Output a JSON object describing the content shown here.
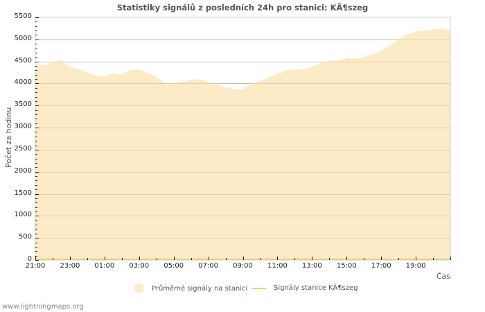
{
  "chart": {
    "title": "Statistiky signálů z posledních 24h pro stanici: KÃ¶szeg",
    "ylabel": "Počet za hodinu",
    "xlabel": "Čas",
    "yticks": [
      "0",
      "500",
      "1000",
      "1500",
      "2000",
      "2500",
      "3000",
      "3500",
      "4000",
      "4500",
      "5000",
      "5500"
    ],
    "xticks": [
      "21:00",
      "23:00",
      "01:00",
      "03:00",
      "05:00",
      "07:00",
      "09:00",
      "11:00",
      "13:00",
      "15:00",
      "17:00",
      "19:00"
    ],
    "legend": {
      "area_label": "Průměmé signály na stanici",
      "line_label": "Signály stanice KÃ¶szeg"
    },
    "colors": {
      "area_fill": "#fdebc8",
      "station_line": "#f5cc60",
      "grid": "#cccccc",
      "axis": "#cccccc"
    }
  },
  "footer": {
    "site": "www.lightningmaps.org"
  },
  "chart_data": {
    "type": "area",
    "title": "Statistiky signálů z posledních 24h pro stanici: KÃ¶szeg",
    "xlabel": "Čas",
    "ylabel": "Počet za hodinu",
    "ylim": [
      0,
      5500
    ],
    "grid": true,
    "legend_position": "bottom",
    "x": [
      "21:00",
      "21:30",
      "22:00",
      "22:30",
      "23:00",
      "23:30",
      "00:00",
      "00:30",
      "01:00",
      "01:30",
      "02:00",
      "02:30",
      "03:00",
      "03:30",
      "04:00",
      "04:30",
      "05:00",
      "05:30",
      "06:00",
      "06:30",
      "07:00",
      "07:30",
      "08:00",
      "08:30",
      "09:00",
      "09:30",
      "10:00",
      "10:30",
      "11:00",
      "11:30",
      "12:00",
      "12:30",
      "13:00",
      "13:30",
      "14:00",
      "14:30",
      "15:00",
      "15:30",
      "16:00",
      "16:30",
      "17:00",
      "17:30",
      "18:00",
      "18:30",
      "19:00",
      "19:30",
      "20:00",
      "20:30",
      "21:00"
    ],
    "series": [
      {
        "name": "Průměmé signály na stanici",
        "type": "area",
        "values": [
          4415,
          4415,
          4480,
          4530,
          4370,
          4320,
          4260,
          4165,
          4165,
          4230,
          4195,
          4305,
          4320,
          4245,
          4150,
          4005,
          4005,
          4040,
          4085,
          4100,
          4040,
          3975,
          3915,
          3865,
          3880,
          3990,
          4055,
          4135,
          4225,
          4290,
          4320,
          4320,
          4385,
          4460,
          4510,
          4525,
          4575,
          4560,
          4605,
          4665,
          4745,
          4870,
          4995,
          5120,
          5185,
          5200,
          5230,
          5250,
          5200
        ]
      },
      {
        "name": "Signály stanice KÃ¶szeg",
        "type": "line",
        "values": [
          0,
          0,
          0,
          0,
          0,
          0,
          0,
          0,
          0,
          0,
          0,
          0,
          0,
          0,
          0,
          0,
          0,
          0,
          0,
          0,
          0,
          0,
          0,
          0,
          0,
          0,
          0,
          0,
          0,
          0,
          0,
          0,
          0,
          0,
          0,
          0,
          0,
          0,
          0,
          0,
          0,
          0,
          0,
          0,
          0,
          0,
          0,
          0,
          0
        ]
      }
    ]
  }
}
